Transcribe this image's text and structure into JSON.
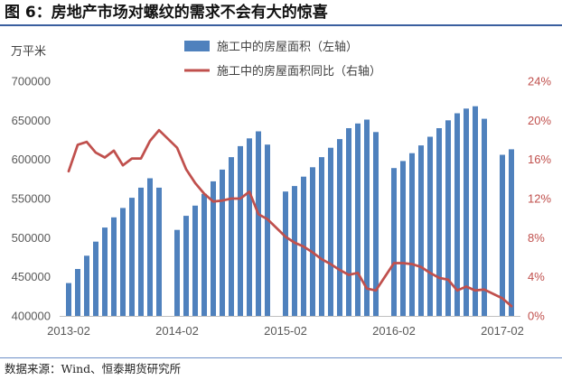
{
  "chart_data": {
    "type": "bar+line",
    "title": "图 6：房地产市场对螺纹的需求不会有大的惊喜",
    "ylabel_left": "万平米",
    "xlim": [
      "2013-01",
      "2017-04"
    ],
    "ylim_left": [
      400000,
      700000
    ],
    "ylim_right": [
      0,
      24
    ],
    "x_ticks": [
      "2013-02",
      "2014-02",
      "2015-02",
      "2016-02",
      "2017-02"
    ],
    "y_left_ticks": [
      "400000",
      "450000",
      "500000",
      "550000",
      "600000",
      "650000",
      "700000"
    ],
    "y_right_ticks": [
      "0%",
      "4%",
      "8%",
      "12%",
      "16%",
      "20%",
      "24%"
    ],
    "grid": false,
    "legend": "top-center",
    "x": [
      "2013-02",
      "2013-03",
      "2013-04",
      "2013-05",
      "2013-06",
      "2013-07",
      "2013-08",
      "2013-09",
      "2013-10",
      "2013-11",
      "2013-12",
      "2014-02",
      "2014-03",
      "2014-04",
      "2014-05",
      "2014-06",
      "2014-07",
      "2014-08",
      "2014-09",
      "2014-10",
      "2014-11",
      "2014-12",
      "2015-02",
      "2015-03",
      "2015-04",
      "2015-05",
      "2015-06",
      "2015-07",
      "2015-08",
      "2015-09",
      "2015-10",
      "2015-11",
      "2015-12",
      "2016-02",
      "2016-03",
      "2016-04",
      "2016-05",
      "2016-06",
      "2016-07",
      "2016-08",
      "2016-09",
      "2016-10",
      "2016-11",
      "2016-12",
      "2017-02",
      "2017-03"
    ],
    "series": [
      {
        "name": "施工中的房屋面积（左轴）",
        "type": "bar",
        "y_axis": "left",
        "color": "#4f81bd",
        "values": [
          442000,
          460000,
          477000,
          495000,
          513000,
          526000,
          538000,
          551000,
          564000,
          576000,
          564000,
          510000,
          528000,
          541000,
          556000,
          572000,
          587000,
          603000,
          617000,
          627000,
          636000,
          619000,
          559000,
          566000,
          578000,
          590000,
          603000,
          615000,
          626000,
          640000,
          646000,
          651000,
          635000,
          589000,
          598000,
          608000,
          618000,
          629000,
          640000,
          650000,
          659000,
          665000,
          668000,
          652000,
          606000,
          613000
        ]
      },
      {
        "name": "施工中的房屋面积同比（右轴）",
        "type": "line",
        "y_axis": "right",
        "color": "#c0504d",
        "values": [
          14.8,
          17.5,
          17.8,
          16.7,
          16.2,
          16.9,
          15.4,
          16.1,
          16.1,
          17.9,
          19.0,
          17.2,
          15.0,
          13.6,
          12.5,
          11.7,
          11.8,
          12.0,
          12.0,
          12.7,
          10.4,
          9.9,
          8.1,
          7.5,
          7.1,
          6.5,
          5.8,
          5.3,
          4.7,
          4.2,
          4.4,
          2.8,
          2.6,
          5.4,
          5.4,
          5.3,
          5.0,
          4.4,
          3.9,
          3.7,
          2.6,
          3.0,
          2.6,
          2.7,
          1.8,
          1.0
        ]
      }
    ]
  },
  "source_note": "数据来源：Wind、恒泰期货研究所"
}
